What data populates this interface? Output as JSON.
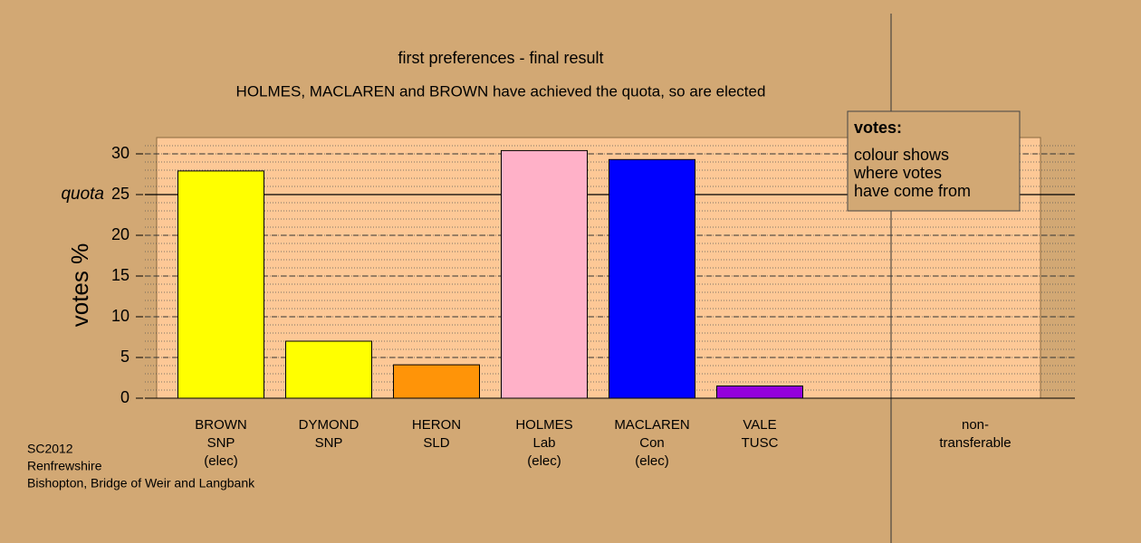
{
  "chart_data": {
    "type": "bar",
    "title": "first preferences - final result",
    "subtitle": "HOLMES, MACLAREN and BROWN have achieved the quota, so are elected",
    "y_label": "votes %",
    "categories": [
      [
        "BROWN",
        "SNP",
        "(elec)"
      ],
      [
        "DYMOND",
        "SNP"
      ],
      [
        "HERON",
        "SLD"
      ],
      [
        "HOLMES",
        "Lab",
        "(elec)"
      ],
      [
        "MACLAREN",
        "Con",
        "(elec)"
      ],
      [
        "VALE",
        "TUSC"
      ],
      null,
      [
        "non-",
        "transferable"
      ]
    ],
    "values": [
      27.9,
      7.0,
      4.1,
      30.4,
      29.3,
      1.5,
      null,
      0
    ],
    "colors": [
      "#ffff00",
      "#ffff00",
      "#ff9408",
      "#ffb1c8",
      "#0000ff",
      "#9400dc",
      null,
      "#fdc896"
    ],
    "ylim": [
      0,
      32
    ],
    "yticks": [
      0,
      5,
      10,
      15,
      20,
      25,
      30
    ],
    "grid": true,
    "quota": {
      "label": "quota",
      "value": 25
    },
    "legend": {
      "title": "votes:",
      "lines": [
        "colour shows",
        "where votes",
        "have come from"
      ]
    },
    "footer": [
      "SC2012",
      "Renfrewshire",
      "Bishopton, Bridge of Weir and Langbank"
    ]
  }
}
